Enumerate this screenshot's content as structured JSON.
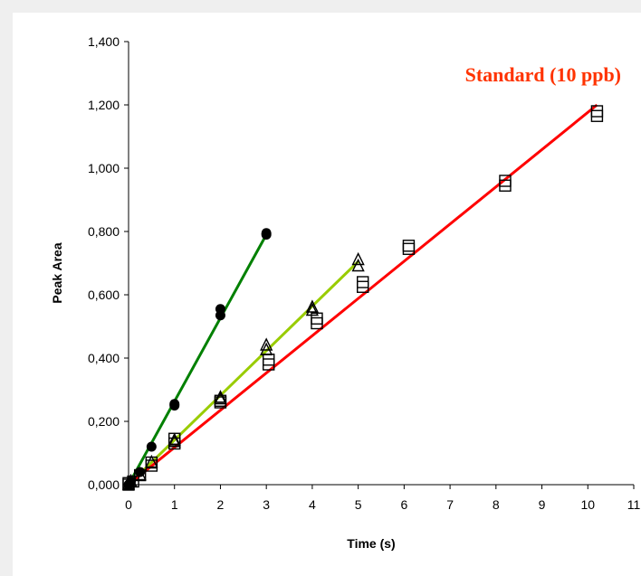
{
  "chart_data": {
    "type": "scatter",
    "title": "Standard (10 ppb)",
    "xlabel": "Time (s)",
    "ylabel": "Peak Area",
    "xlim": [
      0,
      11
    ],
    "ylim": [
      0,
      1.4
    ],
    "x_ticks": [
      "0",
      "1",
      "2",
      "3",
      "4",
      "5",
      "6",
      "7",
      "8",
      "9",
      "10",
      "11"
    ],
    "y_ticks": [
      "0,000",
      "0,200",
      "0,400",
      "0,600",
      "0,800",
      "1,000",
      "1,200",
      "1,400"
    ],
    "grid": false,
    "series": [
      {
        "marker": "circle",
        "color": "#008000",
        "points": [
          [
            0,
            0
          ],
          [
            0.05,
            0.01
          ],
          [
            0.25,
            0.04
          ],
          [
            0.5,
            0.12
          ],
          [
            1,
            0.25
          ],
          [
            1,
            0.255
          ],
          [
            2,
            0.535
          ],
          [
            2,
            0.555
          ],
          [
            3,
            0.79
          ],
          [
            3,
            0.795
          ]
        ],
        "fit": [
          [
            0,
            0
          ],
          [
            3,
            0.79
          ]
        ]
      },
      {
        "marker": "triangle",
        "color": "#99cc00",
        "points": [
          [
            0,
            0
          ],
          [
            0.05,
            0.01
          ],
          [
            0.25,
            0.03
          ],
          [
            0.5,
            0.07
          ],
          [
            1,
            0.14
          ],
          [
            1,
            0.135
          ],
          [
            2,
            0.275
          ],
          [
            2,
            0.27
          ],
          [
            3,
            0.44
          ],
          [
            3,
            0.425
          ],
          [
            4,
            0.56
          ],
          [
            4,
            0.55
          ],
          [
            5,
            0.71
          ],
          [
            5,
            0.69
          ]
        ],
        "fit": [
          [
            0,
            0
          ],
          [
            5,
            0.705
          ]
        ]
      },
      {
        "marker": "square",
        "color": "#ff0000",
        "points": [
          [
            0,
            0
          ],
          [
            0,
            0.005
          ],
          [
            0.1,
            0.01
          ],
          [
            0.25,
            0.03
          ],
          [
            0.5,
            0.06
          ],
          [
            0.5,
            0.07
          ],
          [
            1,
            0.13
          ],
          [
            1,
            0.145
          ],
          [
            2,
            0.26
          ],
          [
            2,
            0.265
          ],
          [
            3.05,
            0.38
          ],
          [
            3.05,
            0.395
          ],
          [
            4.1,
            0.51
          ],
          [
            4.1,
            0.525
          ],
          [
            5.1,
            0.625
          ],
          [
            5.1,
            0.64
          ],
          [
            6.1,
            0.745
          ],
          [
            6.1,
            0.755
          ],
          [
            8.2,
            0.945
          ],
          [
            8.2,
            0.96
          ],
          [
            10.2,
            1.165
          ],
          [
            10.2,
            1.18
          ]
        ],
        "fit": [
          [
            0,
            0
          ],
          [
            10.2,
            1.2
          ]
        ]
      }
    ]
  },
  "colors": {
    "title": "#ff3300",
    "axis": "#000000",
    "background": "#efefef"
  }
}
